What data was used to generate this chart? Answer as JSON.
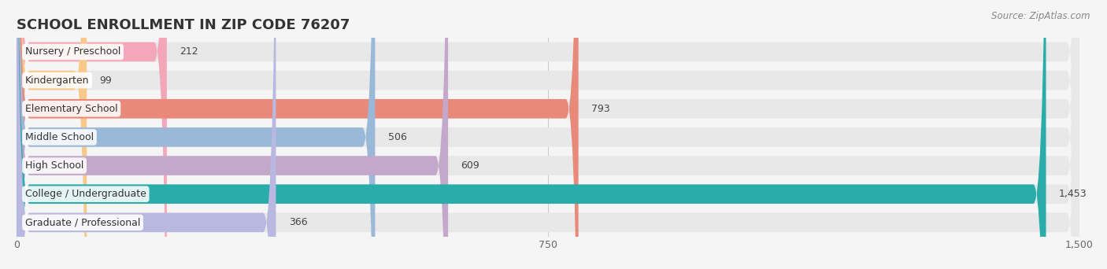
{
  "title": "SCHOOL ENROLLMENT IN ZIP CODE 76207",
  "source": "Source: ZipAtlas.com",
  "categories": [
    "Nursery / Preschool",
    "Kindergarten",
    "Elementary School",
    "Middle School",
    "High School",
    "College / Undergraduate",
    "Graduate / Professional"
  ],
  "values": [
    212,
    99,
    793,
    506,
    609,
    1453,
    366
  ],
  "bar_colors": [
    "#f4a7b9",
    "#f9c98a",
    "#e8897a",
    "#9ab8d8",
    "#c4a8cc",
    "#2aacaa",
    "#b8b8e0"
  ],
  "xlim": [
    0,
    1500
  ],
  "xticks": [
    0,
    750,
    1500
  ],
  "background_color": "#f5f5f5",
  "bar_background_color": "#e8e8e8",
  "title_fontsize": 13,
  "label_fontsize": 9,
  "value_fontsize": 9,
  "bar_height": 0.68
}
